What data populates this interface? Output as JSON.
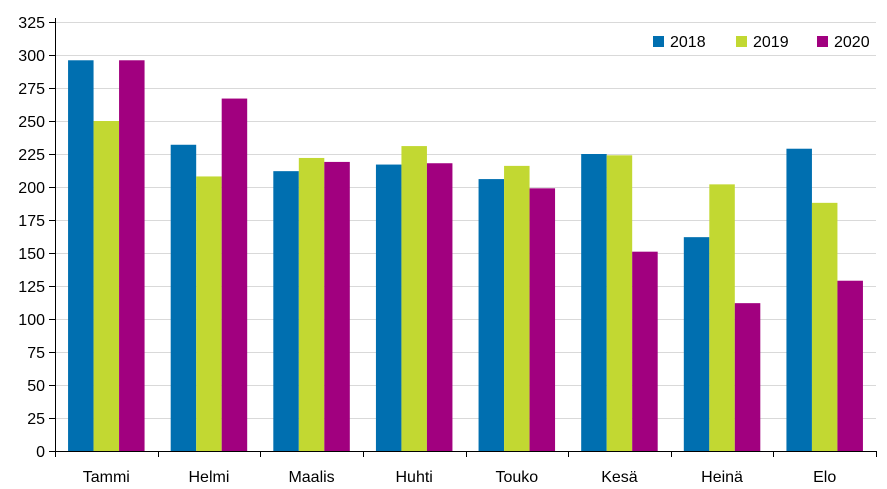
{
  "chart_data": {
    "type": "bar",
    "title": "",
    "xlabel": "",
    "ylabel": "",
    "categories": [
      "Tammi",
      "Helmi",
      "Maalis",
      "Huhti",
      "Touko",
      "Kesä",
      "Heinä",
      "Elo"
    ],
    "series": [
      {
        "name": "2018",
        "color": "#006fb0",
        "values": [
          296,
          232,
          212,
          217,
          206,
          225,
          162,
          229
        ]
      },
      {
        "name": "2019",
        "color": "#c2d832",
        "values": [
          250,
          208,
          222,
          231,
          216,
          224,
          202,
          188
        ]
      },
      {
        "name": "2020",
        "color": "#a1007f",
        "values": [
          296,
          267,
          219,
          218,
          199,
          151,
          112,
          129
        ]
      }
    ],
    "ylim": [
      0,
      325
    ],
    "yticks": [
      0,
      25,
      50,
      75,
      100,
      125,
      150,
      175,
      200,
      225,
      250,
      275,
      300,
      325
    ],
    "grid": true,
    "legend_position": "top-right"
  }
}
